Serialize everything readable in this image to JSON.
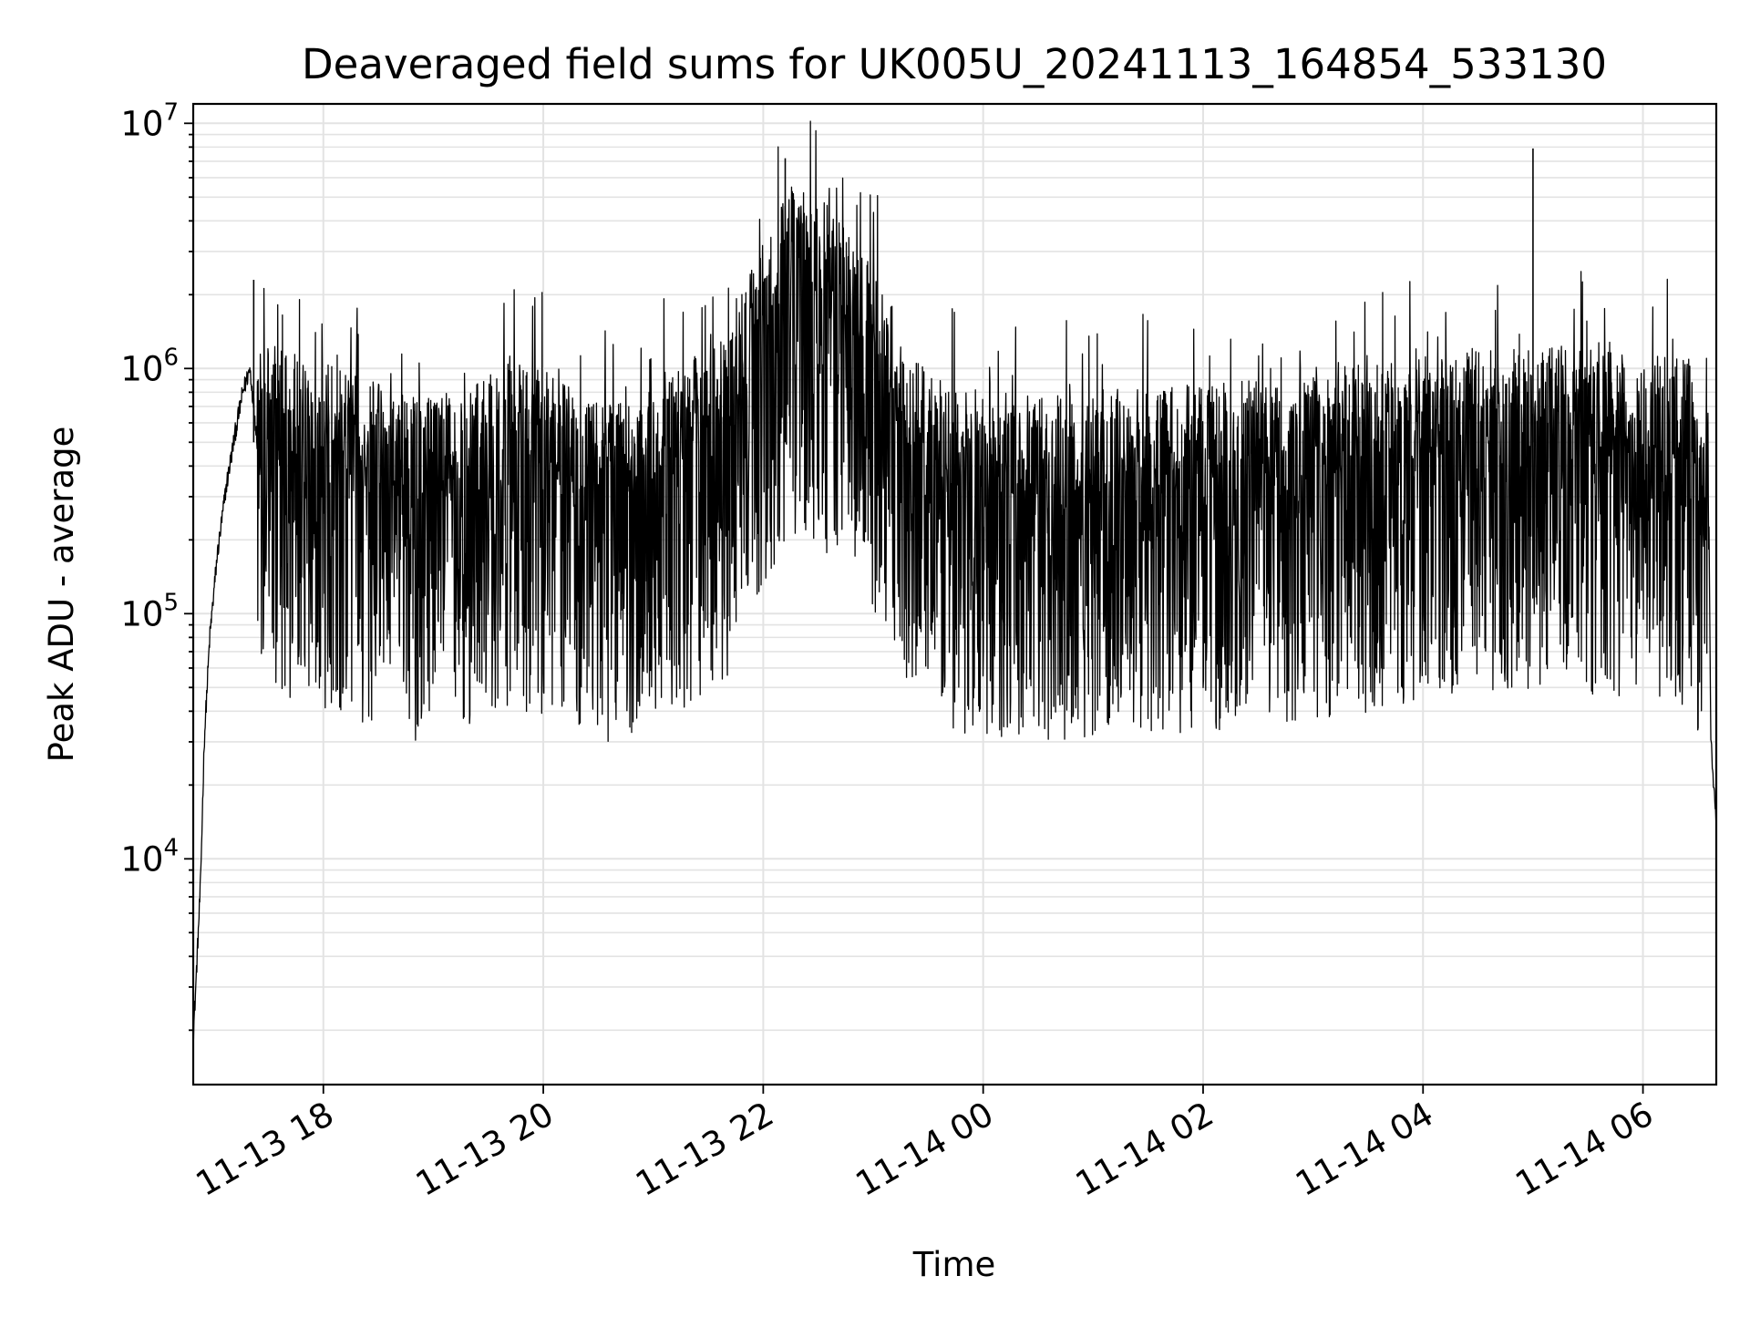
{
  "chart_data": {
    "type": "line",
    "title": "Deaveraged field sums for UK005U_20241113_164854_533130",
    "xlabel": "Time",
    "ylabel": "Peak ADU - average",
    "yscale": "log",
    "ylim": [
      1200,
      12000000
    ],
    "xlim": [
      "2024-11-13 16:49",
      "2024-11-14 06:40"
    ],
    "grid": true,
    "line_color": "#000000",
    "grid_color": "#e3e3e3",
    "x_ticks": [
      {
        "t": "2024-11-13 18:00",
        "label": "11-13 18"
      },
      {
        "t": "2024-11-13 20:00",
        "label": "11-13 20"
      },
      {
        "t": "2024-11-13 22:00",
        "label": "11-13 22"
      },
      {
        "t": "2024-11-14 00:00",
        "label": "11-14 00"
      },
      {
        "t": "2024-11-14 02:00",
        "label": "11-14 02"
      },
      {
        "t": "2024-11-14 04:00",
        "label": "11-14 04"
      },
      {
        "t": "2024-11-14 06:00",
        "label": "11-14 06"
      }
    ],
    "y_ticks": [
      {
        "value": 10000,
        "base": "10",
        "exp": "4"
      },
      {
        "value": 100000,
        "base": "10",
        "exp": "5"
      },
      {
        "value": 1000000,
        "base": "10",
        "exp": "6"
      },
      {
        "value": 10000000,
        "base": "10",
        "exp": "7"
      }
    ],
    "series": [
      {
        "points": [
          [
            "2024-11-13 16:49",
            1900
          ],
          [
            "2024-11-13 16:50",
            2600
          ],
          [
            "2024-11-13 16:53",
            8000
          ],
          [
            "2024-11-13 16:55",
            30000
          ],
          [
            "2024-11-13 16:58",
            80000
          ],
          [
            "2024-11-13 17:02",
            170000
          ],
          [
            "2024-11-13 17:07",
            330000
          ],
          [
            "2024-11-13 17:12",
            550000
          ],
          [
            "2024-11-13 17:16",
            800000
          ],
          [
            "2024-11-13 17:20",
            1000000
          ],
          [
            "2024-11-13 17:24",
            500000
          ],
          [
            "2024-11-13 17:40",
            450000
          ],
          [
            "2024-11-13 18:00",
            400000
          ],
          [
            "2024-11-13 18:20",
            360000
          ],
          [
            "2024-11-13 18:40",
            300000
          ],
          [
            "2024-11-13 19:00",
            290000
          ],
          [
            "2024-11-13 19:20",
            310000
          ],
          [
            "2024-11-13 19:40",
            420000
          ],
          [
            "2024-11-13 20:00",
            380000
          ],
          [
            "2024-11-13 20:20",
            300000
          ],
          [
            "2024-11-13 20:40",
            270000
          ],
          [
            "2024-11-13 21:00",
            330000
          ],
          [
            "2024-11-13 21:20",
            420000
          ],
          [
            "2024-11-13 21:40",
            520000
          ],
          [
            "2024-11-13 22:00",
            1300000
          ],
          [
            "2024-11-13 22:15",
            2100000
          ],
          [
            "2024-11-13 22:30",
            1900000
          ],
          [
            "2024-11-13 22:45",
            1500000
          ],
          [
            "2024-11-13 23:00",
            1000000
          ],
          [
            "2024-11-13 23:20",
            450000
          ],
          [
            "2024-11-13 23:40",
            330000
          ],
          [
            "2024-11-14 00:00",
            310000
          ],
          [
            "2024-11-14 00:30",
            300000
          ],
          [
            "2024-11-14 01:00",
            310000
          ],
          [
            "2024-11-14 01:30",
            320000
          ],
          [
            "2024-11-14 02:00",
            330000
          ],
          [
            "2024-11-14 02:30",
            340000
          ],
          [
            "2024-11-14 03:00",
            360000
          ],
          [
            "2024-11-14 03:30",
            390000
          ],
          [
            "2024-11-14 04:00",
            420000
          ],
          [
            "2024-11-14 04:30",
            450000
          ],
          [
            "2024-11-14 05:00",
            480000
          ],
          [
            "2024-11-14 05:30",
            470000
          ],
          [
            "2024-11-14 06:00",
            440000
          ],
          [
            "2024-11-14 06:25",
            420000
          ],
          [
            "2024-11-14 06:36",
            250000
          ],
          [
            "2024-11-14 06:37",
            30000
          ],
          [
            "2024-11-14 06:40",
            14000
          ]
        ]
      }
    ],
    "annotations": [
      {
        "t": "2024-11-14 05:00",
        "y": 7900000,
        "note": "spike"
      },
      {
        "t": "2024-11-13 17:22",
        "y": 2300000,
        "note": "spike"
      },
      {
        "t": "2024-11-13 22:12",
        "y": 7200000,
        "note": "spike"
      }
    ]
  }
}
